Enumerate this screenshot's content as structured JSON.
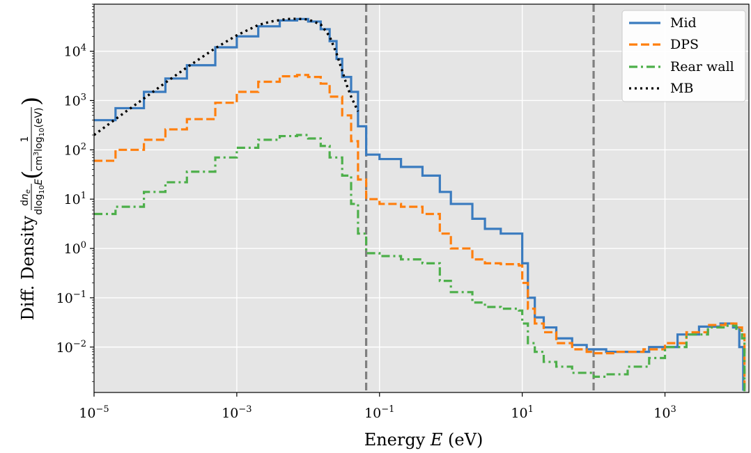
{
  "chart_data": {
    "type": "line",
    "xlabel_text": "Energy ",
    "xlabel_var": "E",
    "xlabel_unit": " (eV)",
    "ylabel_text": "Diff. Density",
    "xscale": "log",
    "yscale": "log",
    "xlim": [
      1e-05,
      15000
    ],
    "ylim": [
      0.0012,
      90000
    ],
    "x_ticks": [
      {
        "value": 1e-05,
        "base": "10",
        "exp": "−5"
      },
      {
        "value": 0.001,
        "base": "10",
        "exp": "−3"
      },
      {
        "value": 0.1,
        "base": "10",
        "exp": "−1"
      },
      {
        "value": 10,
        "base": "10",
        "exp": "1"
      },
      {
        "value": 1000,
        "base": "10",
        "exp": "3"
      }
    ],
    "y_ticks": [
      {
        "value": 0.01,
        "base": "10",
        "exp": "−2"
      },
      {
        "value": 0.1,
        "base": "10",
        "exp": "−1"
      },
      {
        "value": 1,
        "base": "10",
        "exp": "0"
      },
      {
        "value": 10,
        "base": "10",
        "exp": "1"
      },
      {
        "value": 100,
        "base": "10",
        "exp": "2"
      },
      {
        "value": 1000,
        "base": "10",
        "exp": "3"
      },
      {
        "value": 10000,
        "base": "10",
        "exp": "4"
      }
    ],
    "grid": true,
    "legend_position": "top-right",
    "vlines": [
      0.065,
      100
    ],
    "series": [
      {
        "name": "Mid",
        "color": "#3a7bbf",
        "style": "solid",
        "step": true,
        "points": [
          [
            1e-05,
            400
          ],
          [
            2e-05,
            700
          ],
          [
            5e-05,
            1500
          ],
          [
            0.0001,
            2800
          ],
          [
            0.0002,
            5200
          ],
          [
            0.0005,
            12000
          ],
          [
            0.001,
            20000
          ],
          [
            0.002,
            32000
          ],
          [
            0.004,
            42000
          ],
          [
            0.007,
            45000
          ],
          [
            0.01,
            40000
          ],
          [
            0.015,
            28000
          ],
          [
            0.02,
            16000
          ],
          [
            0.025,
            7000
          ],
          [
            0.03,
            3000
          ],
          [
            0.04,
            1500
          ],
          [
            0.05,
            300
          ],
          [
            0.062,
            300
          ],
          [
            0.065,
            80
          ],
          [
            0.1,
            65
          ],
          [
            0.2,
            45
          ],
          [
            0.4,
            30
          ],
          [
            0.7,
            14
          ],
          [
            1,
            8
          ],
          [
            2,
            4
          ],
          [
            3,
            2.5
          ],
          [
            5,
            2
          ],
          [
            9,
            2
          ],
          [
            10,
            0.5
          ],
          [
            12,
            0.1
          ],
          [
            15,
            0.04
          ],
          [
            20,
            0.025
          ],
          [
            30,
            0.015
          ],
          [
            50,
            0.011
          ],
          [
            80,
            0.009
          ],
          [
            150,
            0.008
          ],
          [
            300,
            0.008
          ],
          [
            600,
            0.01
          ],
          [
            1500,
            0.018
          ],
          [
            3000,
            0.026
          ],
          [
            6000,
            0.03
          ],
          [
            9000,
            0.025
          ],
          [
            11000,
            0.01
          ],
          [
            12500,
            0.0013
          ]
        ]
      },
      {
        "name": "DPS",
        "color": "#ff7f0e",
        "style": "dashed",
        "step": true,
        "points": [
          [
            1e-05,
            60
          ],
          [
            2e-05,
            100
          ],
          [
            5e-05,
            160
          ],
          [
            0.0001,
            260
          ],
          [
            0.0002,
            420
          ],
          [
            0.0005,
            900
          ],
          [
            0.001,
            1500
          ],
          [
            0.002,
            2400
          ],
          [
            0.004,
            3100
          ],
          [
            0.007,
            3300
          ],
          [
            0.01,
            3000
          ],
          [
            0.015,
            2200
          ],
          [
            0.02,
            1200
          ],
          [
            0.03,
            500
          ],
          [
            0.04,
            150
          ],
          [
            0.05,
            25
          ],
          [
            0.065,
            10
          ],
          [
            0.1,
            8
          ],
          [
            0.2,
            7
          ],
          [
            0.4,
            5
          ],
          [
            0.7,
            2
          ],
          [
            1,
            1
          ],
          [
            2,
            0.6
          ],
          [
            3,
            0.5
          ],
          [
            5,
            0.48
          ],
          [
            9,
            0.45
          ],
          [
            10,
            0.2
          ],
          [
            12,
            0.06
          ],
          [
            15,
            0.03
          ],
          [
            20,
            0.02
          ],
          [
            30,
            0.012
          ],
          [
            50,
            0.009
          ],
          [
            80,
            0.008
          ],
          [
            100,
            0.0075
          ],
          [
            200,
            0.008
          ],
          [
            500,
            0.009
          ],
          [
            1000,
            0.012
          ],
          [
            2000,
            0.02
          ],
          [
            4000,
            0.028
          ],
          [
            7000,
            0.03
          ],
          [
            10000,
            0.025
          ],
          [
            12000,
            0.018
          ],
          [
            13000,
            0.0012
          ]
        ]
      },
      {
        "name": "Rear wall",
        "color": "#4daf4a",
        "style": "dashdot",
        "step": true,
        "points": [
          [
            1e-05,
            5
          ],
          [
            2e-05,
            7
          ],
          [
            5e-05,
            14
          ],
          [
            0.0001,
            22
          ],
          [
            0.0002,
            36
          ],
          [
            0.0005,
            70
          ],
          [
            0.001,
            110
          ],
          [
            0.002,
            160
          ],
          [
            0.004,
            190
          ],
          [
            0.007,
            200
          ],
          [
            0.01,
            170
          ],
          [
            0.015,
            120
          ],
          [
            0.02,
            70
          ],
          [
            0.03,
            30
          ],
          [
            0.04,
            8
          ],
          [
            0.05,
            2
          ],
          [
            0.065,
            0.8
          ],
          [
            0.1,
            0.7
          ],
          [
            0.2,
            0.6
          ],
          [
            0.4,
            0.5
          ],
          [
            0.7,
            0.22
          ],
          [
            1,
            0.13
          ],
          [
            2,
            0.08
          ],
          [
            3,
            0.065
          ],
          [
            5,
            0.06
          ],
          [
            9,
            0.055
          ],
          [
            10,
            0.03
          ],
          [
            12,
            0.012
          ],
          [
            15,
            0.008
          ],
          [
            20,
            0.005
          ],
          [
            30,
            0.004
          ],
          [
            50,
            0.003
          ],
          [
            100,
            0.0025
          ],
          [
            150,
            0.0028
          ],
          [
            300,
            0.004
          ],
          [
            600,
            0.006
          ],
          [
            1000,
            0.01
          ],
          [
            2000,
            0.018
          ],
          [
            4000,
            0.025
          ],
          [
            7000,
            0.027
          ],
          [
            10000,
            0.022
          ],
          [
            12000,
            0.015
          ],
          [
            13000,
            0.0012
          ]
        ]
      },
      {
        "name": "MB",
        "color": "#000000",
        "style": "dotted",
        "step": false,
        "points": [
          [
            1e-05,
            200
          ],
          [
            2e-05,
            420
          ],
          [
            5e-05,
            1100
          ],
          [
            0.0001,
            2300
          ],
          [
            0.0002,
            4700
          ],
          [
            0.0005,
            11500
          ],
          [
            0.001,
            21000
          ],
          [
            0.002,
            34000
          ],
          [
            0.003,
            40000
          ],
          [
            0.005,
            45000
          ],
          [
            0.007,
            45500
          ],
          [
            0.01,
            44000
          ],
          [
            0.015,
            35000
          ],
          [
            0.02,
            20000
          ],
          [
            0.025,
            9000
          ],
          [
            0.03,
            4000
          ],
          [
            0.035,
            2000
          ],
          [
            0.04,
            1200
          ],
          [
            0.05,
            600
          ]
        ]
      }
    ]
  }
}
